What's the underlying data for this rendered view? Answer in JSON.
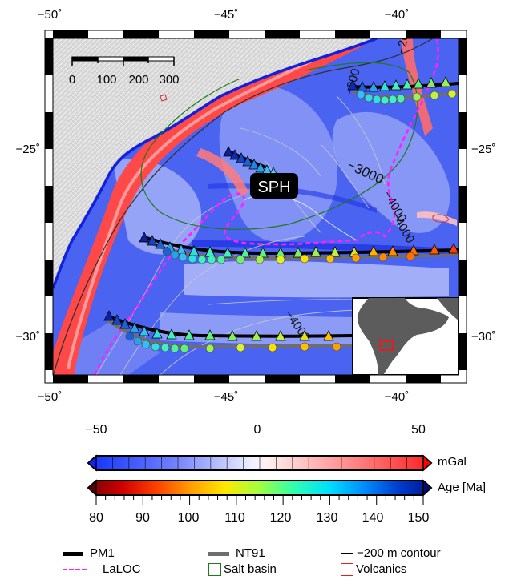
{
  "map": {
    "axis_labels_top": [
      "−50˚",
      "−45˚",
      "−40˚"
    ],
    "axis_labels_bottom": [
      "−50˚",
      "−45˚",
      "−40˚"
    ],
    "axis_labels_left": [
      "−25˚",
      "−30˚"
    ],
    "axis_labels_right": [
      "−25˚",
      "−30˚"
    ],
    "scale_bar_labels": [
      "0",
      "100",
      "200",
      "300"
    ],
    "feature_label": "SPH",
    "contour_labels": [
      "−200",
      "−300",
      "−3000",
      "−4000",
      "−4000",
      "−4000"
    ],
    "inset": "South America location map with red box marking study area"
  },
  "colorbars": {
    "gravity": {
      "ticks": [
        "−50",
        "0",
        "50"
      ],
      "unit": "mGal",
      "colors": [
        "#1030ff",
        "#5a6dff",
        "#9aa6ff",
        "#dfe3ff",
        "#ffe0e0",
        "#ff9a9a",
        "#ff3030"
      ]
    },
    "age": {
      "ticks": [
        "80",
        "90",
        "100",
        "110",
        "120",
        "130",
        "140",
        "150"
      ],
      "unit": "Age [Ma]",
      "colors": [
        "#7a0000",
        "#c80000",
        "#ff4000",
        "#ff9000",
        "#ffe000",
        "#aaff40",
        "#30ffb0",
        "#00e0ff",
        "#00a0ff",
        "#0050e0",
        "#001890"
      ]
    }
  },
  "legend": {
    "items": [
      {
        "label": "PM1",
        "kind": "thick-black"
      },
      {
        "label": "NT91",
        "kind": "thick-gray"
      },
      {
        "label": "−200 m contour",
        "kind": "thin-black"
      },
      {
        "label": "LaLOC",
        "kind": "dash-magenta"
      },
      {
        "label": "Salt basin",
        "kind": "box-green"
      },
      {
        "label": "Volcanics",
        "kind": "box-red"
      }
    ]
  }
}
